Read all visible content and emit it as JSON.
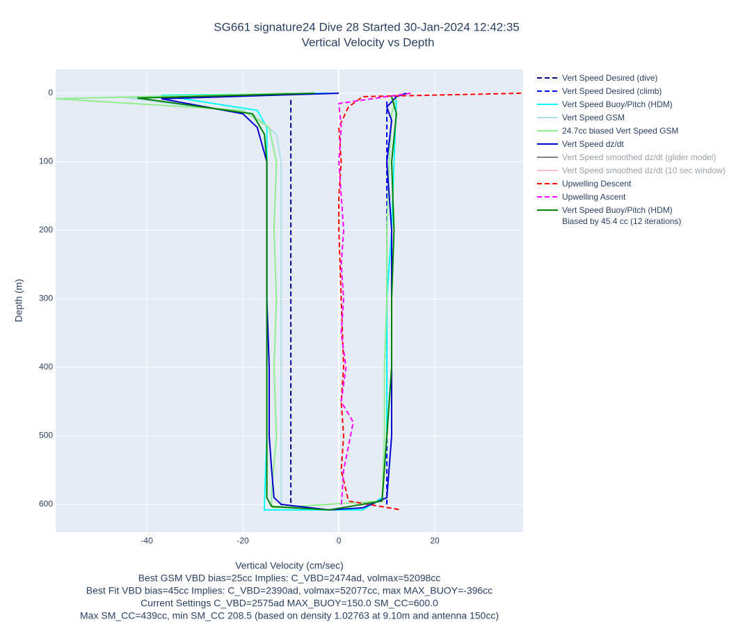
{
  "chart_data": {
    "type": "line",
    "title": "SG661 signature24 Dive 28 Started 30-Jan-2024 12:42:35",
    "subtitle": "Vertical Velocity vs Depth",
    "x_label": "Vertical Velocity (cm/sec)",
    "y_label": "Depth (m)",
    "notes": [
      "Best GSM VBD bias=25cc Implies: C_VBD=2474ad, volmax=52098cc",
      "Best Fit VBD bias=45cc Implies: C_VBD=2390ad, volmax=52077cc, max MAX_BUOY=-396cc",
      "Current Settings C_VBD=2575ad MAX_BUOY=150.0 SM_CC=600.0",
      "Max SM_CC=439cc, min SM_CC 208.5 (based on density 1.02763 at 9.10m and antenna 150cc)"
    ],
    "xlim": [
      -59,
      38.4
    ],
    "ylim": [
      640.6,
      -34.5
    ],
    "xticks": [
      -40,
      -20,
      0,
      20
    ],
    "yticks": [
      0,
      100,
      200,
      300,
      400,
      500,
      600
    ],
    "grid": true,
    "series": [
      {
        "name": "Vert Speed Desired (dive)",
        "color": "#00008b",
        "dash": true,
        "x": [
          -10,
          -10
        ],
        "y": [
          10,
          600
        ]
      },
      {
        "name": "Vert Speed Desired (climb)",
        "color": "#0000ff",
        "dash": true,
        "x": [
          10,
          10
        ],
        "y": [
          600,
          10
        ]
      },
      {
        "name": "Vert Speed Buoy/Pitch (HDM)",
        "color": "#00ffff",
        "dash": false,
        "x": [
          -2,
          -37,
          -17,
          -15,
          -15,
          -15,
          -15,
          -15,
          -15,
          -15.5,
          -15.5,
          5,
          9,
          10,
          10,
          10,
          11,
          11.5,
          12
        ],
        "y": [
          0,
          3,
          25,
          50,
          100,
          200,
          300,
          400,
          500,
          600,
          608,
          608,
          590,
          500,
          400,
          300,
          200,
          100,
          10
        ]
      },
      {
        "name": "Vert Speed GSM",
        "color": "#b0e0e6",
        "dash": false,
        "x": [
          -5,
          -45,
          -18,
          -13,
          -12,
          -12,
          -12,
          -12,
          -12,
          -12,
          -12
        ],
        "y": [
          0,
          6,
          30,
          60,
          100,
          200,
          300,
          400,
          500,
          590,
          605
        ]
      },
      {
        "name": "24.7cc biased Vert Speed GSM",
        "color": "#90ee90",
        "dash": false,
        "x": [
          -10,
          -59,
          -20,
          -14.5,
          -13,
          -13.5,
          -13,
          -13.5,
          -13,
          -14,
          -14,
          -13.5,
          9,
          9.5,
          9.5,
          10,
          10,
          10.5,
          11,
          12
        ],
        "y": [
          0,
          8,
          25,
          50,
          100,
          200,
          300,
          400,
          500,
          580,
          600,
          605,
          595,
          500,
          400,
          300,
          200,
          100,
          30,
          5
        ]
      },
      {
        "name": "Vert Speed dz/dt",
        "color": "#0000cd",
        "dash": false,
        "x": [
          0,
          -37,
          -20,
          -17,
          -15,
          -15,
          -15,
          -14.5,
          -14.5,
          -14,
          -13.5,
          -12,
          -2,
          5,
          10,
          11,
          11,
          11,
          11,
          10,
          11,
          10,
          12,
          14
        ],
        "y": [
          0,
          8,
          30,
          50,
          100,
          200,
          300,
          400,
          500,
          550,
          590,
          600,
          608,
          605,
          590,
          500,
          400,
          300,
          200,
          100,
          40,
          20,
          5,
          0
        ]
      },
      {
        "name": "Vert Speed smoothed dz/dt (glider model)",
        "color": "#808080",
        "visible": false
      },
      {
        "name": "Vert Speed smoothed dz/dt (10 sec window)",
        "color": "#ffc0cb",
        "visible": false
      },
      {
        "name": "Upwelling Descent",
        "color": "#ff0000",
        "dash": true,
        "x": [
          38,
          5,
          2,
          0,
          0.5,
          0,
          0,
          0.5,
          1,
          0.5,
          1,
          0.5,
          2,
          13
        ],
        "y": [
          0,
          5,
          20,
          50,
          100,
          150,
          200,
          300,
          400,
          450,
          500,
          550,
          595,
          608
        ]
      },
      {
        "name": "Upwelling Ascent",
        "color": "#ff00ff",
        "dash": true,
        "x": [
          15,
          0,
          0.5,
          0,
          1,
          0.5,
          1,
          0.5,
          1.5,
          0.5,
          3,
          1,
          0.5
        ],
        "y": [
          0,
          15,
          50,
          100,
          200,
          250,
          300,
          350,
          400,
          450,
          480,
          550,
          605
        ]
      },
      {
        "name": "Vert Speed Buoy/Pitch (HDM)\nBiased by 45.4 cc (12 iterations)",
        "color": "#008000",
        "dash": false,
        "x": [
          -5,
          -42,
          -18,
          -15.5,
          -15,
          -15,
          -15,
          -15,
          -15,
          -15,
          -14,
          -2,
          9,
          10,
          11,
          11,
          11.5,
          11,
          12,
          11
        ],
        "y": [
          0,
          7,
          30,
          60,
          100,
          200,
          300,
          400,
          500,
          590,
          603,
          608,
          595,
          500,
          400,
          300,
          200,
          100,
          30,
          5
        ]
      }
    ]
  }
}
